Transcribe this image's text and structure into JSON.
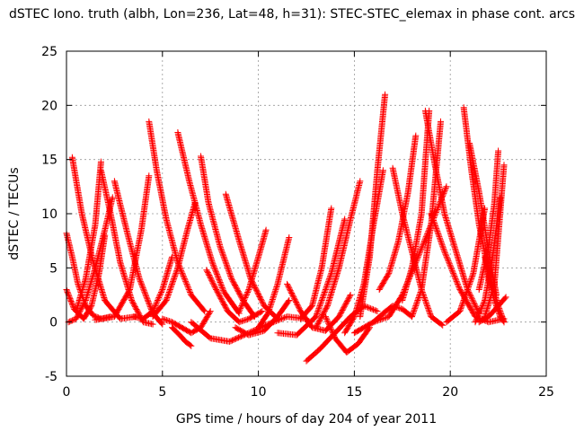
{
  "chart_data": {
    "type": "scatter",
    "title": "dSTEC Iono. truth (albh, Lon=236, Lat=48, h=31): STEC-STEC_elemax in phase cont. arcs",
    "xlabel": "GPS time / hours of day 204 of year 2011",
    "ylabel": "dSTEC  / TECUs",
    "xlim": [
      0,
      25
    ],
    "ylim": [
      -5,
      25
    ],
    "xticks": [
      0,
      5,
      10,
      15,
      20,
      25
    ],
    "yticks": [
      -5,
      0,
      5,
      10,
      15,
      20,
      25
    ],
    "grid": true,
    "legend": "none",
    "marker": "+",
    "color": "#ff0000",
    "series": [
      {
        "x": [
          0.0,
          0.3,
          0.6,
          1.0,
          1.4,
          1.8,
          2.3
        ],
        "y": [
          8.2,
          6.0,
          3.5,
          1.5,
          0.6,
          0.3,
          0.5
        ]
      },
      {
        "x": [
          0.0,
          0.4,
          0.9,
          1.3,
          1.7,
          2.0
        ],
        "y": [
          3.0,
          1.2,
          0.3,
          1.5,
          4.5,
          8.0
        ]
      },
      {
        "x": [
          0.1,
          0.5,
          1.0,
          1.5,
          2.0,
          2.4
        ],
        "y": [
          0.0,
          0.3,
          2.0,
          5.0,
          8.5,
          11.5
        ]
      },
      {
        "x": [
          0.3,
          0.8,
          1.4,
          2.0,
          2.8,
          3.6
        ],
        "y": [
          15.2,
          10.0,
          5.5,
          2.0,
          0.3,
          0.5
        ]
      },
      {
        "x": [
          0.5,
          1.0,
          1.5,
          1.8
        ],
        "y": [
          1.0,
          4.0,
          9.0,
          14.8
        ]
      },
      {
        "x": [
          1.8,
          2.3,
          2.8,
          3.4,
          4.0,
          4.5
        ],
        "y": [
          14.0,
          10.0,
          5.5,
          2.0,
          0.0,
          -0.2
        ]
      },
      {
        "x": [
          1.5,
          2.5,
          3.3,
          3.9,
          4.3
        ],
        "y": [
          0.2,
          0.5,
          3.0,
          8.5,
          13.5
        ]
      },
      {
        "x": [
          2.5,
          3.2,
          3.8,
          4.5,
          5.0
        ],
        "y": [
          13.0,
          8.0,
          4.0,
          0.8,
          -0.2
        ]
      },
      {
        "x": [
          3.5,
          4.0,
          4.5,
          5.0,
          5.5
        ],
        "y": [
          0.5,
          0.3,
          1.0,
          3.0,
          6.0
        ]
      },
      {
        "x": [
          4.3,
          4.7,
          5.2,
          5.8,
          6.5,
          7.2
        ],
        "y": [
          18.5,
          14.0,
          9.5,
          5.5,
          2.5,
          1.0
        ]
      },
      {
        "x": [
          4.5,
          5.2,
          5.8,
          6.3,
          6.7
        ],
        "y": [
          0.5,
          2.0,
          5.0,
          8.5,
          11.0
        ]
      },
      {
        "x": [
          5.8,
          6.4,
          7.0,
          7.6,
          8.2,
          9.0
        ],
        "y": [
          17.5,
          13.0,
          9.0,
          5.5,
          2.8,
          0.8
        ]
      },
      {
        "x": [
          5.0,
          5.5,
          6.0,
          6.5,
          7.0,
          7.5
        ],
        "y": [
          0.3,
          0.0,
          -0.5,
          -1.0,
          -0.5,
          1.0
        ]
      },
      {
        "x": [
          5.5,
          5.9,
          6.2,
          6.5
        ],
        "y": [
          -0.5,
          -1.2,
          -1.8,
          -2.2
        ]
      },
      {
        "x": [
          7.0,
          7.4,
          8.0,
          8.6,
          9.2,
          9.8
        ],
        "y": [
          15.3,
          11.0,
          7.0,
          4.0,
          2.0,
          0.5
        ]
      },
      {
        "x": [
          6.5,
          7.5,
          8.5,
          9.5,
          10.5,
          11.5,
          12.5
        ],
        "y": [
          0.0,
          -1.5,
          -1.8,
          -1.0,
          -0.2,
          0.5,
          0.3
        ]
      },
      {
        "x": [
          7.3,
          7.8,
          8.4,
          9.0,
          9.5,
          10.2
        ],
        "y": [
          4.8,
          3.0,
          1.0,
          0.0,
          0.3,
          1.0
        ]
      },
      {
        "x": [
          8.3,
          9.0,
          9.6,
          10.3,
          11.0
        ],
        "y": [
          11.8,
          7.5,
          4.0,
          1.5,
          0.3
        ]
      },
      {
        "x": [
          8.8,
          9.5,
          10.3,
          11.0,
          11.6
        ],
        "y": [
          -0.5,
          -1.2,
          -0.8,
          0.5,
          2.0
        ]
      },
      {
        "x": [
          9.0,
          9.5,
          10.0,
          10.4
        ],
        "y": [
          1.0,
          3.0,
          6.0,
          8.5
        ]
      },
      {
        "x": [
          10.0,
          10.5,
          11.0,
          11.6
        ],
        "y": [
          -0.5,
          0.8,
          3.5,
          7.8
        ]
      },
      {
        "x": [
          11.5,
          12.2,
          12.8,
          13.5,
          14.2,
          14.8
        ],
        "y": [
          3.5,
          1.0,
          -0.5,
          -0.8,
          0.5,
          2.5
        ]
      },
      {
        "x": [
          11.0,
          12.0,
          13.0,
          13.8,
          14.5
        ],
        "y": [
          -1.0,
          -1.2,
          0.5,
          4.5,
          9.5
        ]
      },
      {
        "x": [
          12.2,
          12.8,
          13.3,
          13.8
        ],
        "y": [
          0.3,
          1.5,
          5.0,
          10.5
        ]
      },
      {
        "x": [
          12.5,
          13.2,
          14.0,
          14.8,
          15.5,
          16.2
        ],
        "y": [
          -3.6,
          -2.5,
          -1.0,
          0.5,
          1.5,
          1.0
        ]
      },
      {
        "x": [
          13.0,
          13.6,
          14.2,
          14.8,
          15.3
        ],
        "y": [
          -0.5,
          1.5,
          5.0,
          9.5,
          13.0
        ]
      },
      {
        "x": [
          13.5,
          14.0,
          14.6,
          15.2,
          15.8
        ],
        "y": [
          0.5,
          -1.5,
          -2.8,
          -2.0,
          -0.5
        ]
      },
      {
        "x": [
          14.5,
          15.0,
          15.5,
          16.0,
          16.5
        ],
        "y": [
          -1.0,
          0.5,
          3.5,
          9.0,
          14.0
        ]
      },
      {
        "x": [
          15.0,
          15.5,
          16.0,
          16.5,
          17.0,
          17.5,
          18.0
        ],
        "y": [
          -1.0,
          -0.5,
          0.0,
          0.8,
          1.5,
          1.2,
          0.5
        ]
      },
      {
        "x": [
          15.3,
          15.8,
          16.2,
          16.6
        ],
        "y": [
          0.5,
          6.0,
          14.0,
          21.0
        ]
      },
      {
        "x": [
          16.0,
          16.8,
          17.5,
          18.2,
          19.0,
          19.8
        ],
        "y": [
          0.0,
          0.5,
          2.5,
          5.5,
          9.0,
          12.5
        ]
      },
      {
        "x": [
          16.3,
          16.8,
          17.3,
          17.8,
          18.2
        ],
        "y": [
          3.0,
          4.5,
          7.5,
          12.0,
          17.2
        ]
      },
      {
        "x": [
          17.0,
          17.5,
          18.0,
          18.5,
          19.0,
          19.6
        ],
        "y": [
          14.2,
          10.0,
          6.5,
          3.0,
          0.5,
          -0.3
        ]
      },
      {
        "x": [
          17.5,
          18.0,
          18.5,
          18.9
        ],
        "y": [
          2.0,
          5.0,
          10.0,
          19.5
        ]
      },
      {
        "x": [
          18.7,
          19.2,
          19.7,
          20.3,
          20.9,
          21.5
        ],
        "y": [
          19.5,
          14.5,
          10.0,
          6.5,
          3.0,
          0.8
        ]
      },
      {
        "x": [
          18.0,
          18.5,
          19.0,
          19.5
        ],
        "y": [
          0.5,
          3.0,
          9.0,
          18.5
        ]
      },
      {
        "x": [
          19.0,
          19.7,
          20.5,
          21.3,
          22.0,
          22.8
        ],
        "y": [
          10.0,
          6.5,
          3.0,
          0.5,
          0.0,
          0.3
        ]
      },
      {
        "x": [
          19.8,
          20.5,
          21.2,
          21.8
        ],
        "y": [
          0.0,
          1.0,
          4.5,
          10.5
        ]
      },
      {
        "x": [
          20.7,
          21.1,
          21.5,
          22.0,
          22.5,
          22.8
        ],
        "y": [
          19.8,
          14.0,
          9.0,
          4.5,
          1.5,
          0.0
        ]
      },
      {
        "x": [
          21.0,
          21.5,
          22.0,
          22.4
        ],
        "y": [
          16.5,
          12.0,
          6.5,
          2.5
        ]
      },
      {
        "x": [
          21.3,
          21.8,
          22.2,
          22.6
        ],
        "y": [
          0.0,
          2.0,
          6.0,
          11.5
        ]
      },
      {
        "x": [
          21.8,
          22.0,
          22.3,
          22.6,
          22.8
        ],
        "y": [
          6.0,
          4.0,
          2.0,
          0.5,
          0.0
        ]
      },
      {
        "x": [
          21.5,
          22.0,
          22.3,
          22.5
        ],
        "y": [
          3.0,
          7.0,
          11.0,
          15.8
        ]
      },
      {
        "x": [
          21.8,
          22.3,
          22.8
        ],
        "y": [
          0.5,
          3.5,
          14.5
        ]
      },
      {
        "x": [
          21.5,
          22.0,
          22.5,
          22.9
        ],
        "y": [
          0.0,
          0.5,
          1.5,
          2.3
        ]
      }
    ]
  }
}
